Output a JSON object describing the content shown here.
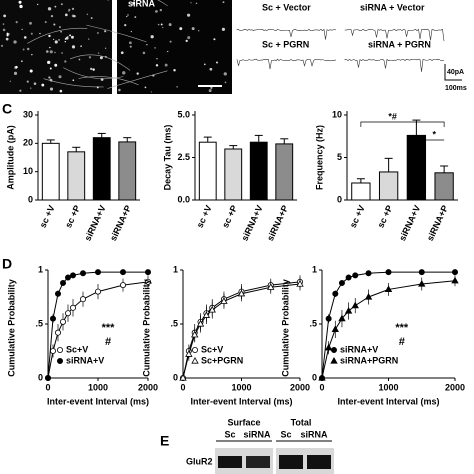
{
  "figure": {
    "image_label": "siRNA",
    "panel_labels": [
      "C",
      "D",
      "E"
    ],
    "traces": {
      "labels": [
        "Sc + Vector",
        "siRNA + Vector",
        "Sc + PGRN",
        "siRNA + PGRN"
      ],
      "scale_y": "40pA",
      "scale_x": "100ms"
    },
    "blot": {
      "headers": [
        "Surface",
        "Total"
      ],
      "lanes": [
        "Sc",
        "siRNA",
        "Sc",
        "siRNA"
      ],
      "protein": "GluR2"
    }
  },
  "chart_data": [
    {
      "type": "bar",
      "ylabel": "Amplitude (pA)",
      "categories": [
        "sc +V",
        "sc +P",
        "siRNA+V",
        "siRNA+P"
      ],
      "values": [
        20,
        17,
        22,
        20.5
      ],
      "errors": [
        1.2,
        1.6,
        1.5,
        1.5
      ],
      "colors": [
        "#ffffff",
        "#d9d9d9",
        "#000000",
        "#8c8c8c"
      ],
      "ylim": [
        0,
        30
      ],
      "yticks": [
        0,
        10,
        20,
        30
      ]
    },
    {
      "type": "bar",
      "ylabel": "Decay Tau (ms)",
      "categories": [
        "sc +V",
        "sc +P",
        "siRNA+V",
        "siRNA+P"
      ],
      "values": [
        3.4,
        3.0,
        3.4,
        3.3
      ],
      "errors": [
        0.3,
        0.2,
        0.4,
        0.3
      ],
      "colors": [
        "#ffffff",
        "#d9d9d9",
        "#000000",
        "#8c8c8c"
      ],
      "ylim": [
        0,
        5
      ],
      "yticks": [
        {
          "value": 0,
          "label": "0.0"
        },
        {
          "value": 2.5,
          "label": "2.5"
        },
        {
          "value": 5,
          "label": "5.0"
        }
      ]
    },
    {
      "type": "bar",
      "ylabel": "Frequency (Hz)",
      "categories": [
        "sc +V",
        "sc +P",
        "siRNA+V",
        "siRNA+P"
      ],
      "values": [
        2.0,
        3.3,
        7.6,
        3.2
      ],
      "errors": [
        0.5,
        1.6,
        1.8,
        0.8
      ],
      "colors": [
        "#ffffff",
        "#d9d9d9",
        "#000000",
        "#8c8c8c"
      ],
      "ylim": [
        0,
        10
      ],
      "yticks": [
        0,
        5,
        10
      ],
      "annotations": [
        "*#",
        "*"
      ]
    },
    {
      "type": "line",
      "ylabel": "Cumulative Probability",
      "xlabel": "Inter-event Interval (ms)",
      "x": [
        0,
        100,
        200,
        300,
        400,
        500,
        700,
        1000,
        1500,
        2000
      ],
      "series": [
        {
          "name": "Sc+V",
          "color": "#000000",
          "marker": "circle-open",
          "values": [
            0,
            0.25,
            0.42,
            0.52,
            0.6,
            0.65,
            0.73,
            0.8,
            0.86,
            0.89
          ],
          "errors": [
            0,
            0.06,
            0.08,
            0.08,
            0.08,
            0.08,
            0.07,
            0.07,
            0.06,
            0.06
          ]
        },
        {
          "name": "siRNA+V",
          "color": "#000000",
          "marker": "circle-filled",
          "values": [
            0,
            0.55,
            0.78,
            0.88,
            0.93,
            0.95,
            0.97,
            0.98,
            0.98,
            0.98
          ],
          "errors": [
            0,
            0.04,
            0.03,
            0.02,
            0.02,
            0.01,
            0.01,
            0.01,
            0.01,
            0.01
          ]
        }
      ],
      "xlim": [
        0,
        2000
      ],
      "xticks": [
        0,
        1000,
        2000
      ],
      "ylim": [
        0,
        1
      ],
      "yticks": [
        0,
        {
          "value": 0.5,
          "label": ".5"
        },
        1
      ],
      "annotations": [
        "***",
        "#"
      ]
    },
    {
      "type": "line",
      "ylabel": "Cumulative Probability",
      "xlabel": "Inter-event Interval (ms)",
      "x": [
        0,
        100,
        200,
        300,
        400,
        500,
        700,
        1000,
        1500,
        2000
      ],
      "series": [
        {
          "name": "Sc+V",
          "color": "#000000",
          "marker": "circle-open",
          "values": [
            0,
            0.25,
            0.42,
            0.52,
            0.6,
            0.65,
            0.73,
            0.8,
            0.86,
            0.89
          ],
          "errors": [
            0,
            0.06,
            0.08,
            0.08,
            0.08,
            0.08,
            0.07,
            0.07,
            0.06,
            0.06
          ]
        },
        {
          "name": "Sc+PGRN",
          "color": "#000000",
          "marker": "triangle-open",
          "values": [
            0,
            0.22,
            0.4,
            0.5,
            0.58,
            0.63,
            0.71,
            0.78,
            0.84,
            0.87
          ],
          "errors": [
            0,
            0.06,
            0.07,
            0.08,
            0.08,
            0.08,
            0.07,
            0.07,
            0.06,
            0.06
          ]
        }
      ],
      "xlim": [
        0,
        2000
      ],
      "xticks": [
        0,
        1000,
        2000
      ],
      "ylim": [
        0,
        1
      ],
      "yticks": [
        0,
        {
          "value": 0.5,
          "label": ".5"
        },
        1
      ]
    },
    {
      "type": "line",
      "ylabel": "Cumulative Probability",
      "xlabel": "Inter-event Interval (ms)",
      "x": [
        0,
        100,
        200,
        300,
        400,
        500,
        700,
        1000,
        1500,
        2000
      ],
      "series": [
        {
          "name": "siRNA+V",
          "color": "#000000",
          "marker": "circle-filled",
          "values": [
            0,
            0.55,
            0.78,
            0.88,
            0.93,
            0.95,
            0.97,
            0.98,
            0.98,
            0.98
          ],
          "errors": [
            0,
            0.04,
            0.03,
            0.02,
            0.02,
            0.01,
            0.01,
            0.01,
            0.01,
            0.01
          ]
        },
        {
          "name": "siRNA+PGRN",
          "color": "#000000",
          "marker": "triangle-filled",
          "values": [
            0,
            0.28,
            0.45,
            0.55,
            0.62,
            0.67,
            0.75,
            0.82,
            0.87,
            0.9
          ],
          "errors": [
            0,
            0.06,
            0.08,
            0.08,
            0.08,
            0.07,
            0.07,
            0.06,
            0.06,
            0.05
          ]
        }
      ],
      "xlim": [
        0,
        2000
      ],
      "xticks": [
        0,
        1000,
        2000
      ],
      "ylim": [
        0,
        1
      ],
      "yticks": [
        0,
        {
          "value": 0.5,
          "label": ".5"
        },
        1
      ],
      "annotations": [
        "***",
        "#"
      ]
    }
  ]
}
